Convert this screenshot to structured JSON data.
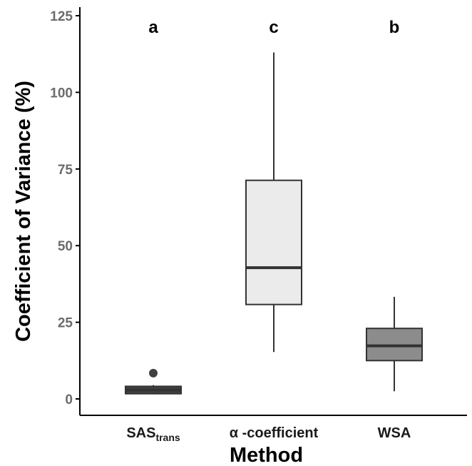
{
  "chart_data": {
    "type": "box",
    "xlabel": "Method",
    "ylabel": "Coefficient of Variance (%)",
    "ylim": [
      0,
      125
    ],
    "yticks": [
      0,
      25,
      50,
      75,
      100,
      125
    ],
    "grid": false,
    "categories": [
      {
        "label": "SAS",
        "label_sub": "trans",
        "letter": "a",
        "fill": "#404040",
        "whisker_low": 1.5,
        "q1": 1.7,
        "median": 2.9,
        "q3": 4.1,
        "whisker_high": 4.5,
        "outliers": [
          8.4
        ]
      },
      {
        "label": "α -coefficient",
        "label_sub": "",
        "letter": "c",
        "fill": "#ebebeb",
        "whisker_low": 15.3,
        "q1": 30.8,
        "median": 42.8,
        "q3": 71.3,
        "whisker_high": 113.0,
        "outliers": []
      },
      {
        "label": "WSA",
        "label_sub": "",
        "letter": "b",
        "fill": "#8c8c8c",
        "whisker_low": 2.5,
        "q1": 12.5,
        "median": 17.3,
        "q3": 23.0,
        "whisker_high": 33.3,
        "outliers": []
      }
    ]
  }
}
